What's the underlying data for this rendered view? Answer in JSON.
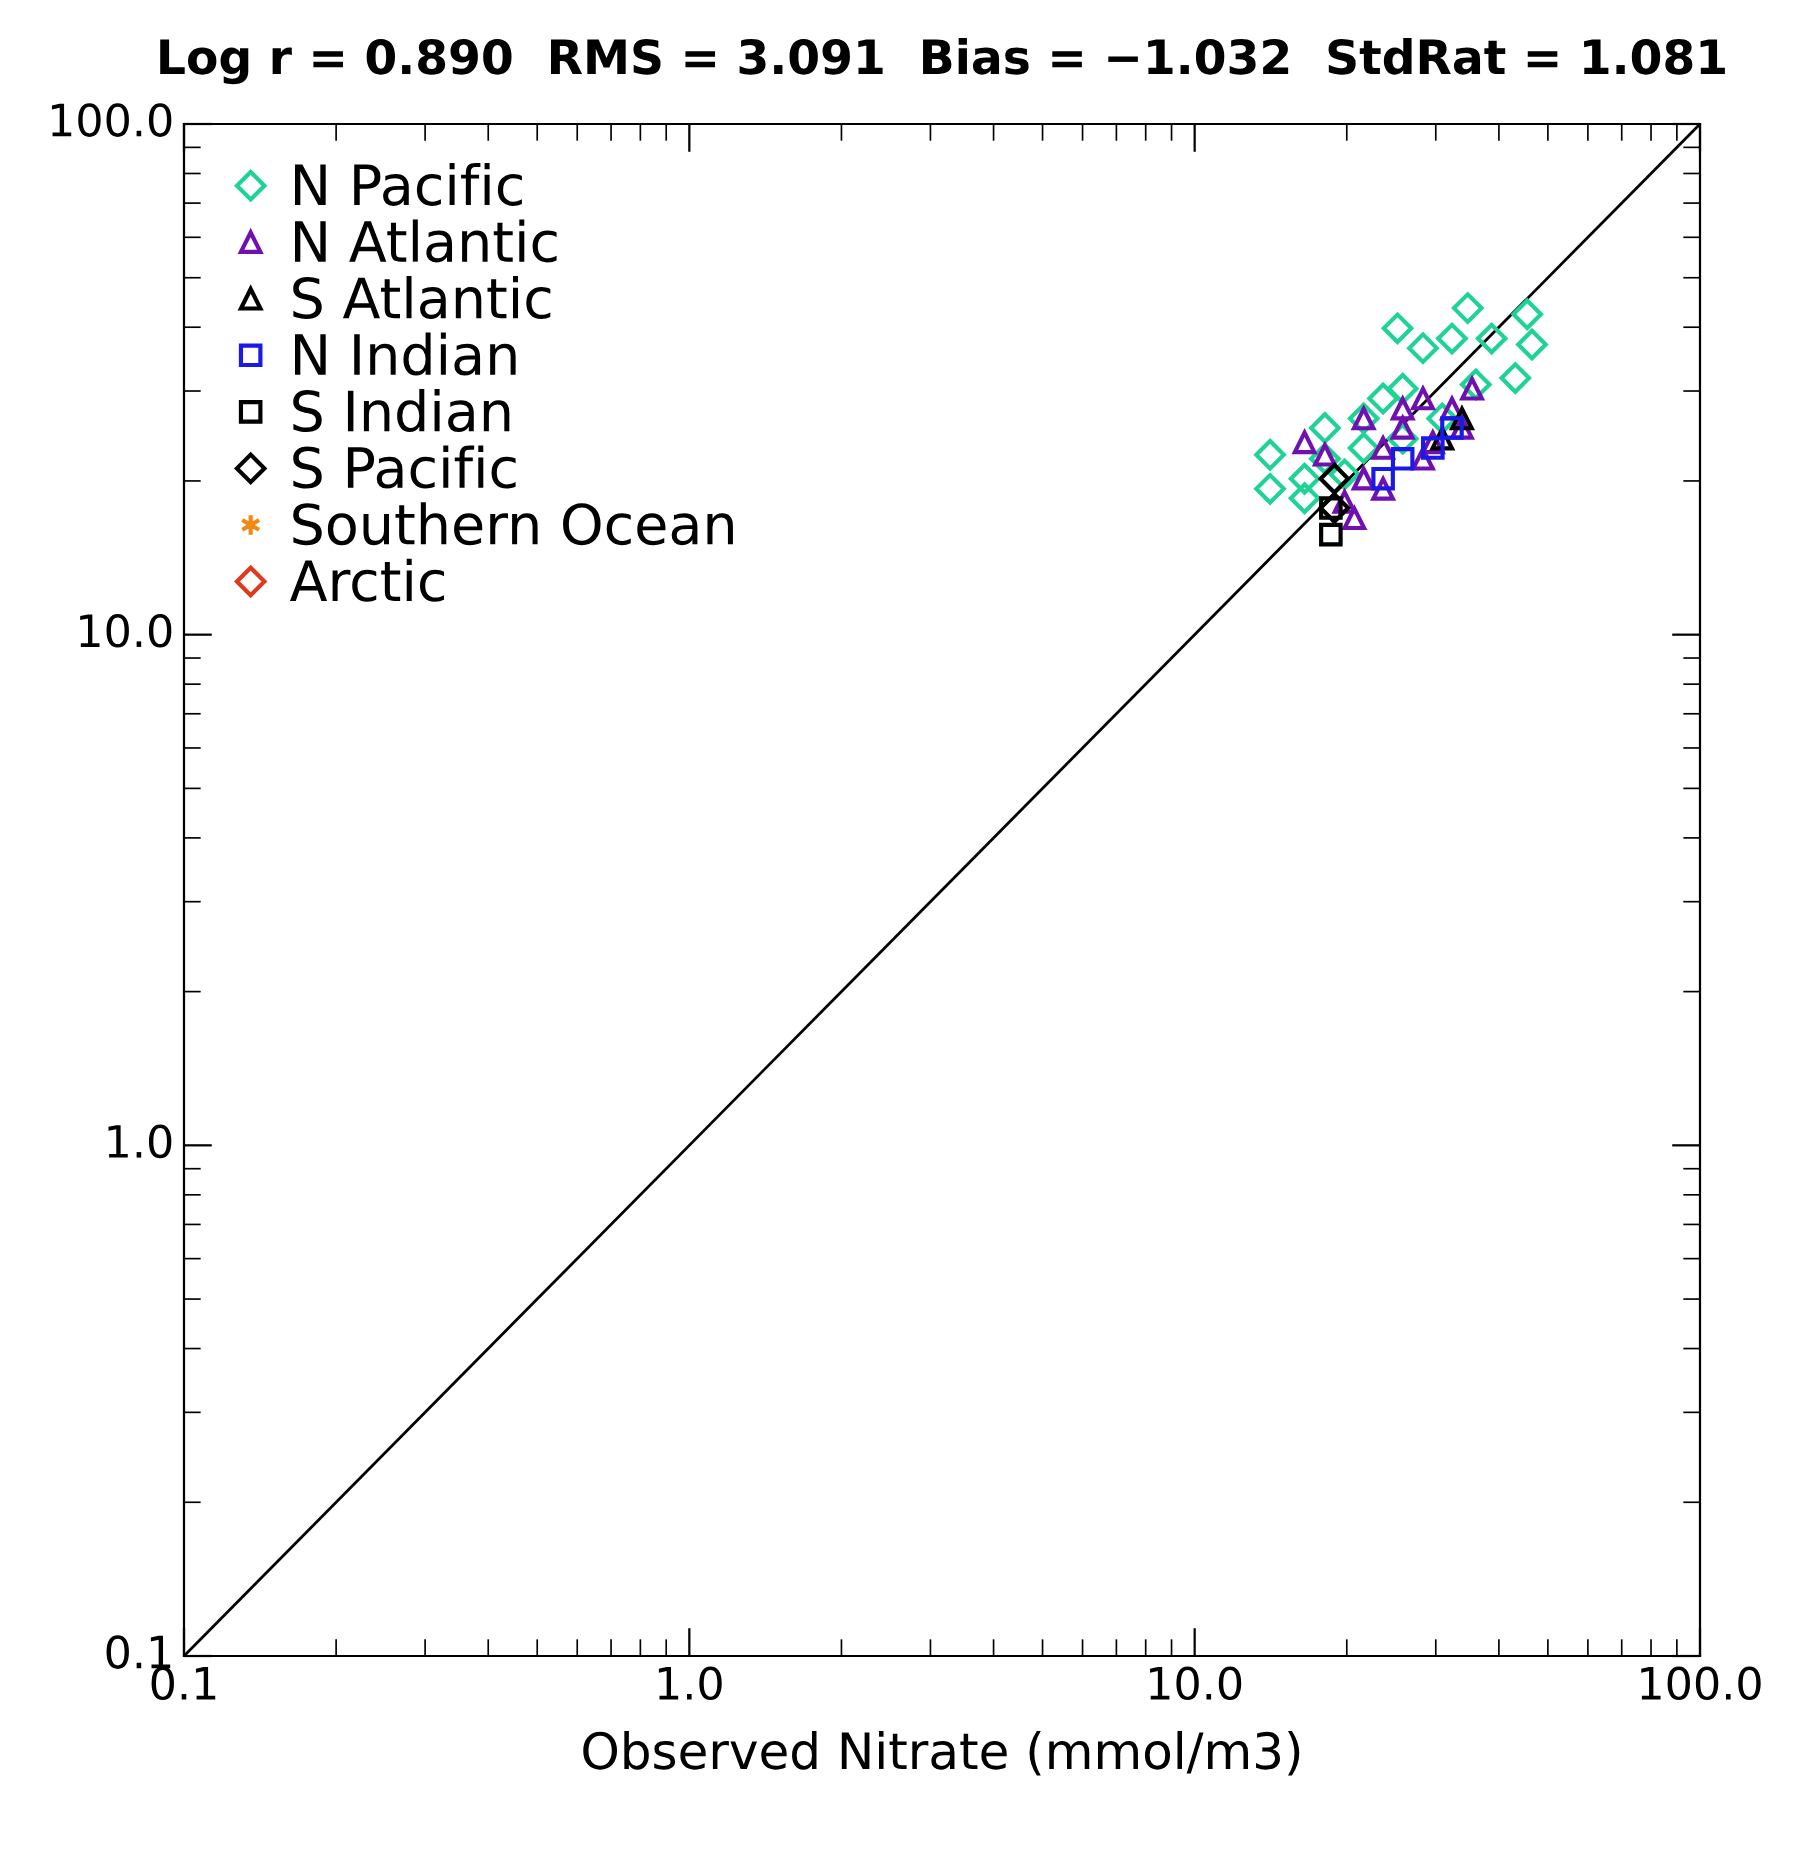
{
  "chart_data": {
    "type": "scatter",
    "title": "Log r = 0.890  RMS = 3.091  Bias = −1.032  StdRat = 1.081",
    "xlabel": "Observed Nitrate (mmol/m3)",
    "log": "xy",
    "xlim": [
      0.1,
      100
    ],
    "ylim": [
      0.1,
      100
    ],
    "xticks": [
      0.1,
      {
        "value": 1,
        "label": "1.0"
      },
      {
        "value": 10,
        "label": "10.0"
      },
      {
        "value": 100,
        "label": "100.0"
      }
    ],
    "yticks": [
      0.1,
      {
        "value": 1,
        "label": "1.0"
      },
      {
        "value": 10,
        "label": "10.0"
      },
      {
        "value": 100,
        "label": "100.0"
      }
    ],
    "grid": false,
    "legend": "top left",
    "series": [
      {
        "type": "line",
        "color": "#000000",
        "marker": "none",
        "line_style": "solid",
        "x": [
          0.1,
          100
        ],
        "values": [
          0.1,
          100
        ]
      },
      {
        "name": "N Pacific",
        "color": "#1fd396",
        "marker": "diamond",
        "x": [
          25.2,
          34.7,
          45.5,
          46.5,
          43.1,
          36.0,
          30.9,
          25.8,
          21.6,
          18.1,
          16.5,
          14.1,
          14.1,
          16.5,
          19.8,
          23.6,
          28.3,
          32.3,
          38.7,
          21.6,
          18.1,
          25.8
        ],
        "values": [
          39.8,
          43.6,
          42.4,
          37.0,
          31.8,
          30.9,
          26.5,
          24.2,
          23.2,
          22.1,
          20.2,
          22.5,
          19.3,
          18.5,
          20.6,
          29.0,
          36.4,
          38.0,
          38.0,
          26.5,
          25.4,
          30.3
        ]
      },
      {
        "name": "N Atlantic",
        "color": "#7010b0",
        "marker": "triangle",
        "x": [
          16.5,
          21.6,
          28.3,
          35.4,
          32.3,
          25.8,
          23.6,
          21.6,
          20.7,
          19.8,
          23.6,
          28.3,
          33.8,
          18.1,
          25.8,
          29.6
        ],
        "values": [
          23.8,
          26.5,
          29.0,
          30.3,
          27.7,
          25.4,
          23.2,
          20.2,
          16.9,
          18.2,
          19.3,
          22.1,
          25.4,
          22.5,
          27.7,
          23.8
        ]
      },
      {
        "name": "S Atlantic",
        "color": "#000000",
        "marker": "triangle",
        "x": [
          30.9,
          33.8
        ],
        "values": [
          24.2,
          26.5
        ]
      },
      {
        "name": "N Indian",
        "color": "#1a1ae6",
        "marker": "square",
        "x": [
          25.8,
          29.6,
          32.3,
          23.6
        ],
        "values": [
          22.1,
          23.2,
          25.4,
          20.2
        ]
      },
      {
        "name": "S Indian",
        "color": "#000000",
        "marker": "square",
        "x": [
          18.6,
          18.6
        ],
        "values": [
          15.7,
          17.7
        ]
      },
      {
        "name": "S Pacific",
        "color": "#000000",
        "marker": "diamond",
        "x": [
          18.9,
          18.9
        ],
        "values": [
          17.7,
          20.2
        ]
      },
      {
        "name": "Southern Ocean",
        "color": "#f08a14",
        "marker": "star"
      },
      {
        "name": "Arctic",
        "color": "#e03a1e",
        "marker": "diamond"
      }
    ]
  }
}
